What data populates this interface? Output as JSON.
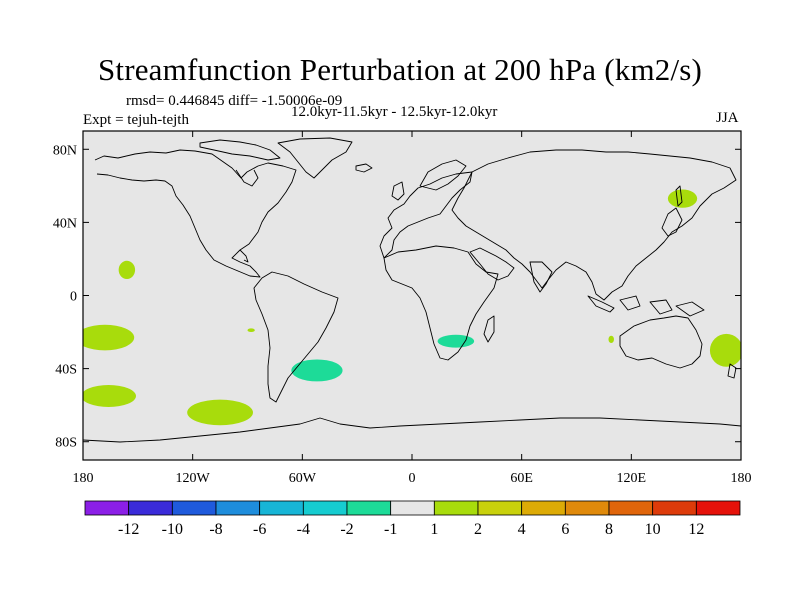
{
  "chart_data": {
    "type": "heatmap",
    "title": "Streamfunction Perturbation at 200 hPa (km2/s)",
    "stats_line": "rmsd= 0.446845 diff= -1.50006e-09",
    "period": "12.0kyr-11.5kyr - 12.5kyr-12.0kyr",
    "experiment": "Expt = tejuh-tejth",
    "season": "JJA",
    "lon_range": [
      -180,
      180
    ],
    "lat_range": [
      -90,
      90
    ],
    "x_ticks": [
      {
        "value": -180,
        "label": "180"
      },
      {
        "value": -120,
        "label": "120W"
      },
      {
        "value": -60,
        "label": "60W"
      },
      {
        "value": 0,
        "label": "0"
      },
      {
        "value": 60,
        "label": "60E"
      },
      {
        "value": 120,
        "label": "120E"
      },
      {
        "value": 180,
        "label": "180"
      }
    ],
    "y_ticks": [
      {
        "value": 80,
        "label": "80N"
      },
      {
        "value": 40,
        "label": "40N"
      },
      {
        "value": 0,
        "label": "0"
      },
      {
        "value": -40,
        "label": "40S"
      },
      {
        "value": -80,
        "label": "80S"
      }
    ],
    "colorbar": {
      "levels": [
        "-12",
        "-10",
        "-8",
        "-6",
        "-4",
        "-2",
        "-1",
        "1",
        "2",
        "4",
        "6",
        "8",
        "10",
        "12"
      ],
      "colors": [
        "#8B1FE6",
        "#3A2BD9",
        "#1F5ADC",
        "#1E8DDC",
        "#17B5D6",
        "#16CCD0",
        "#1DDB98",
        "#E6E6E6",
        "#A8DC0C",
        "#C9D10C",
        "#DDAB06",
        "#E08A0B",
        "#E0650A",
        "#DD3B0A",
        "#E5120A"
      ]
    },
    "background_color": "#E6E6E6",
    "anomaly_regions": [
      {
        "name": "kamchatka-sea-of-okhotsk",
        "sign": "positive",
        "value_range": "1 to 2",
        "color": "#A8DC0C",
        "lon": 148,
        "lat": 53,
        "lon_radius": 8,
        "lat_radius": 5
      },
      {
        "name": "central-pacific-north",
        "sign": "positive",
        "value_range": "1 to 2",
        "color": "#A8DC0C",
        "lon": -156,
        "lat": 14,
        "lon_radius": 4.5,
        "lat_radius": 5
      },
      {
        "name": "south-pacific-west",
        "sign": "positive",
        "value_range": "1 to 2",
        "color": "#A8DC0C",
        "lon": -168,
        "lat": -23,
        "lon_radius": 16,
        "lat_radius": 7
      },
      {
        "name": "pacific-small-patch",
        "sign": "positive",
        "value_range": "1 to 2",
        "color": "#A8DC0C",
        "lon": -88,
        "lat": -19,
        "lon_radius": 2,
        "lat_radius": 1
      },
      {
        "name": "south-pacific-southwest",
        "sign": "positive",
        "value_range": "1 to 2",
        "color": "#A8DC0C",
        "lon": -166,
        "lat": -55,
        "lon_radius": 15,
        "lat_radius": 6
      },
      {
        "name": "south-pacific-southeast",
        "sign": "positive",
        "value_range": "1 to 2",
        "color": "#A8DC0C",
        "lon": -105,
        "lat": -64,
        "lon_radius": 18,
        "lat_radius": 7
      },
      {
        "name": "indian-ocean-small",
        "sign": "positive",
        "value_range": "1 to 2",
        "color": "#A8DC0C",
        "lon": 109,
        "lat": -24,
        "lon_radius": 1.5,
        "lat_radius": 2
      },
      {
        "name": "tasman-sea",
        "sign": "positive",
        "value_range": "1 to 2",
        "color": "#A8DC0C",
        "lon": 172,
        "lat": -30,
        "lon_radius": 9,
        "lat_radius": 9
      },
      {
        "name": "south-atlantic",
        "sign": "negative",
        "value_range": "-1 to -2",
        "color": "#1DDB98",
        "lon": -52,
        "lat": -41,
        "lon_radius": 14,
        "lat_radius": 6
      },
      {
        "name": "southern-africa",
        "sign": "negative",
        "value_range": "-1 to -2",
        "color": "#1DDB98",
        "lon": 24,
        "lat": -25,
        "lon_radius": 10,
        "lat_radius": 3.5
      }
    ]
  }
}
